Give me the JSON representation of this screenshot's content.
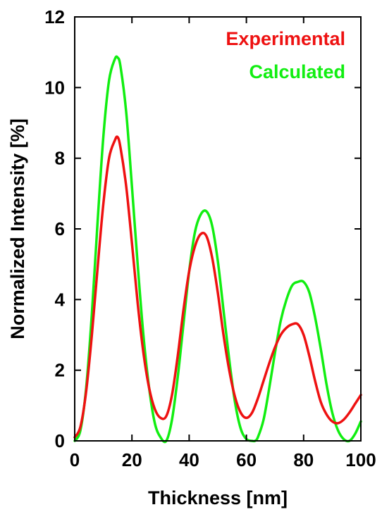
{
  "chart_data": {
    "type": "line",
    "xlabel": "Thickness [nm]",
    "ylabel": "Normalized Intensity [%]",
    "xlim": [
      0,
      100
    ],
    "ylim": [
      0,
      12
    ],
    "xticks": [
      0,
      20,
      40,
      60,
      80,
      100
    ],
    "yticks": [
      0,
      2,
      4,
      6,
      8,
      10,
      12
    ],
    "grid": false,
    "legend_position": "top-right",
    "series": [
      {
        "name": "Experimental",
        "color": "#ee1111",
        "x": [
          0,
          2,
          4,
          6,
          8,
          10,
          12,
          14,
          15,
          16,
          18,
          20,
          22,
          24,
          26,
          28,
          30,
          32,
          34,
          36,
          38,
          40,
          42,
          44,
          46,
          48,
          50,
          52,
          54,
          56,
          58,
          60,
          62,
          64,
          66,
          68,
          70,
          72,
          74,
          76,
          78,
          80,
          82,
          84,
          86,
          88,
          90,
          92,
          94,
          96,
          98,
          100
        ],
        "y": [
          0.1,
          0.4,
          1.4,
          3.0,
          4.9,
          6.7,
          8.0,
          8.5,
          8.6,
          8.3,
          7.2,
          5.6,
          3.9,
          2.5,
          1.5,
          0.9,
          0.65,
          0.7,
          1.3,
          2.4,
          3.7,
          4.8,
          5.5,
          5.85,
          5.8,
          5.2,
          4.2,
          3.0,
          2.0,
          1.25,
          0.8,
          0.65,
          0.8,
          1.2,
          1.7,
          2.2,
          2.65,
          3.0,
          3.2,
          3.3,
          3.3,
          3.0,
          2.4,
          1.7,
          1.1,
          0.75,
          0.55,
          0.5,
          0.6,
          0.8,
          1.05,
          1.3
        ]
      },
      {
        "name": "Calculated",
        "color": "#11ee11",
        "x": [
          0,
          2,
          4,
          6,
          8,
          10,
          12,
          14,
          15,
          16,
          18,
          20,
          22,
          24,
          26,
          28,
          30,
          32,
          34,
          36,
          38,
          40,
          42,
          44,
          46,
          48,
          50,
          52,
          54,
          56,
          58,
          60,
          62,
          63,
          64,
          66,
          68,
          70,
          72,
          74,
          76,
          78,
          80,
          82,
          84,
          86,
          88,
          90,
          92,
          94,
          96,
          98,
          100
        ],
        "y": [
          0.0,
          0.3,
          1.5,
          3.6,
          6.2,
          8.6,
          10.2,
          10.8,
          10.85,
          10.6,
          9.3,
          7.2,
          5.0,
          3.0,
          1.5,
          0.5,
          0.1,
          0.0,
          0.6,
          1.8,
          3.3,
          4.8,
          5.9,
          6.4,
          6.5,
          6.1,
          5.1,
          3.7,
          2.3,
          1.1,
          0.35,
          0.05,
          0.0,
          0.0,
          0.1,
          0.6,
          1.5,
          2.5,
          3.4,
          4.0,
          4.4,
          4.5,
          4.5,
          4.2,
          3.5,
          2.6,
          1.6,
          0.8,
          0.3,
          0.05,
          0.0,
          0.2,
          0.55
        ]
      }
    ]
  }
}
